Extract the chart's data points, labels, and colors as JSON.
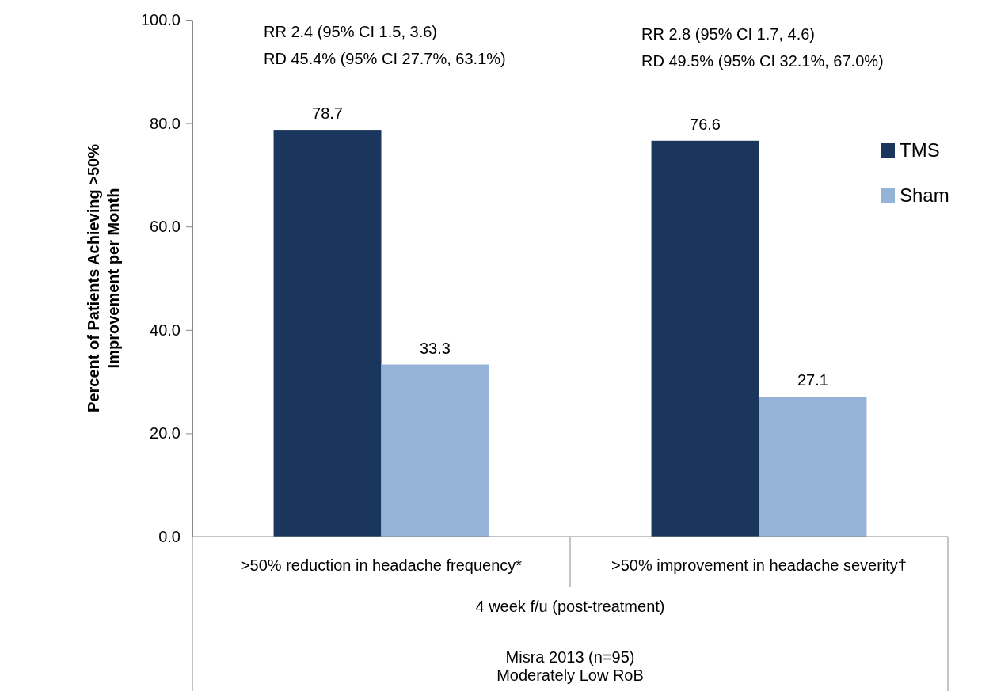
{
  "chart_data": {
    "type": "bar",
    "ylabel": "Percent of Patients Achieving >50% Improvement per Month",
    "xlabel": "4 week f/u (post-treatment)",
    "categories": [
      ">50% reduction in headache frequency*",
      ">50% improvement in headache severity†"
    ],
    "series": [
      {
        "name": "TMS",
        "color": "#1b365d",
        "values": [
          78.7,
          76.6
        ]
      },
      {
        "name": "Sham",
        "color": "#95b3d7",
        "values": [
          33.3,
          27.1
        ]
      }
    ],
    "ylim": [
      0,
      100
    ],
    "yticks": [
      {
        "value": 0,
        "label": "0.0"
      },
      {
        "value": 20,
        "label": "20.0"
      },
      {
        "value": 40,
        "label": "40.0"
      },
      {
        "value": 60,
        "label": "60.0"
      },
      {
        "value": 80,
        "label": "80.0"
      },
      {
        "value": 100,
        "label": "100.0"
      }
    ],
    "data_labels": true,
    "legend": "right",
    "grid": false,
    "annotations": [
      "RR 2.4 (95% CI 1.5, 3.6)",
      "RD 45.4% (95% CI 27.7%, 63.1%)",
      "RR 2.8 (95% CI 1.7, 4.6)",
      "RD 49.5% (95% CI 32.1%, 67.0%)",
      "Misra 2013 (n=95)",
      "Moderately Low RoB"
    ]
  }
}
